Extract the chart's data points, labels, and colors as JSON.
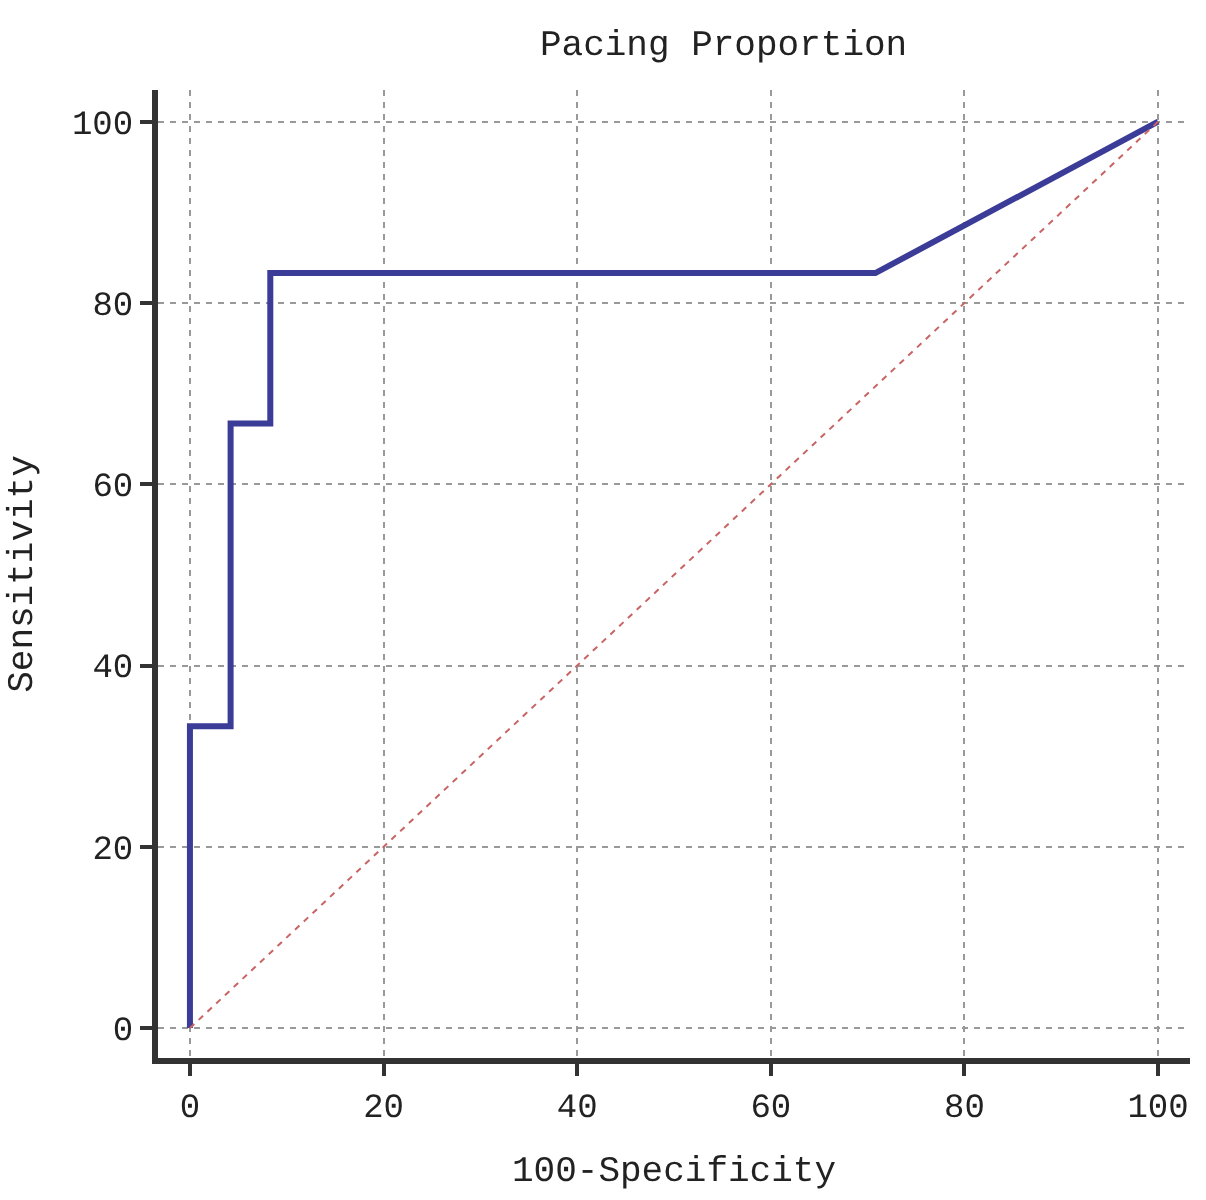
{
  "chart_data": {
    "type": "line",
    "title": "Pacing Proportion",
    "xlabel": "100-Specificity",
    "ylabel": "Sensitivity",
    "xlim": [
      -3.3,
      103.3
    ],
    "ylim": [
      -3.3,
      103.5
    ],
    "xticks": [
      0,
      20,
      40,
      60,
      80,
      100
    ],
    "yticks": [
      0,
      20,
      40,
      60,
      80,
      100
    ],
    "grid": true,
    "marker": "none",
    "series": [
      {
        "x": [
          0,
          0,
          4.2,
          4.2,
          8.3,
          8.3,
          70.8,
          100
        ],
        "values": [
          0,
          33.3,
          33.3,
          66.7,
          66.7,
          83.3,
          83.3,
          100
        ],
        "color": "#3b3b98",
        "line_style": "solid"
      },
      {
        "x": [
          0,
          100
        ],
        "values": [
          0,
          100
        ],
        "color": "#c86464",
        "line_style": "dotted"
      }
    ]
  }
}
